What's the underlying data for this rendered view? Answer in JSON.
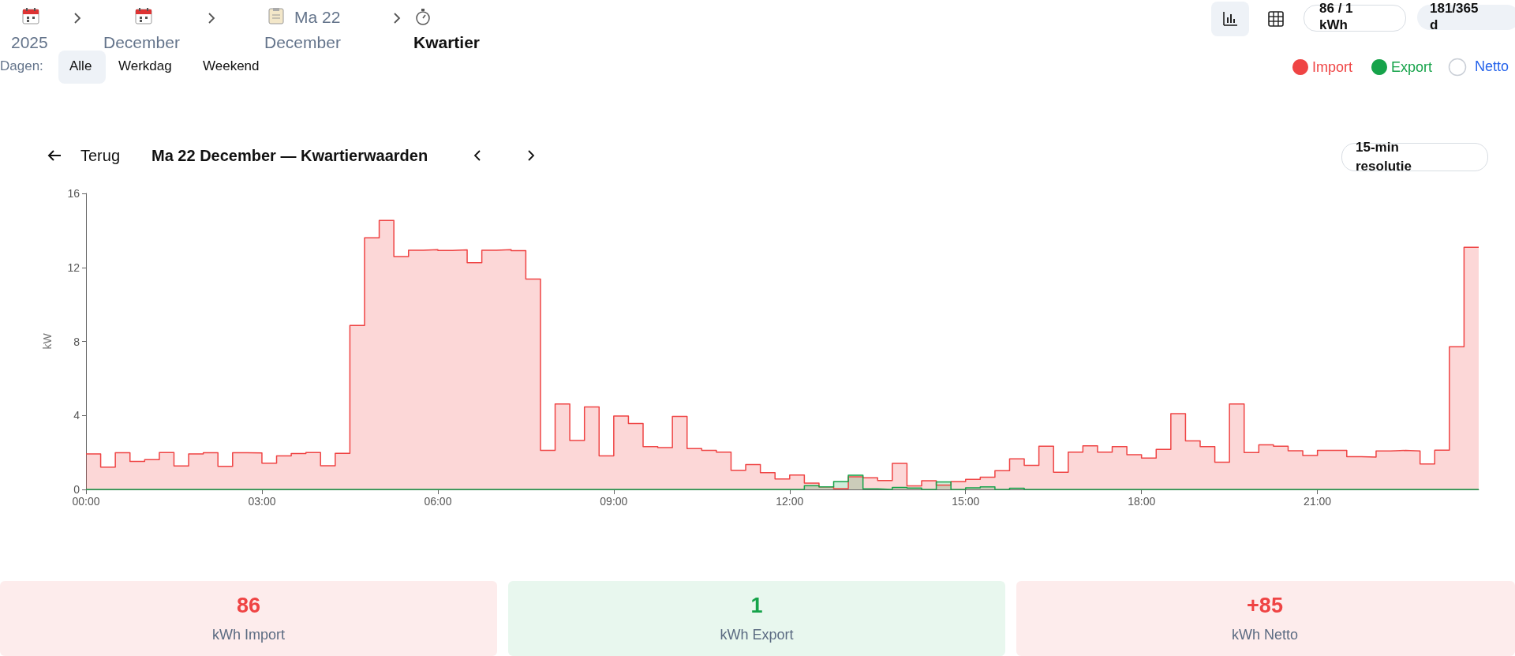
{
  "chart_data": {
    "type": "step",
    "title": "Ma 22 December — Kwartierwaarden",
    "ylabel": "kW",
    "marker": "none",
    "line_style": "solid",
    "legend": "top right",
    "x": [
      0,
      0.25,
      0.5,
      0.75,
      1,
      1.25,
      1.5,
      1.75,
      2,
      2.25,
      2.5,
      2.75,
      3,
      3.25,
      3.5,
      3.75,
      4,
      4.25,
      4.5,
      4.75,
      5,
      5.25,
      5.5,
      5.75,
      6,
      6.25,
      6.5,
      6.75,
      7,
      7.25,
      7.5,
      7.75,
      8,
      8.25,
      8.5,
      8.75,
      9,
      9.25,
      9.5,
      9.75,
      10,
      10.25,
      10.5,
      10.75,
      11,
      11.25,
      11.5,
      11.75,
      12,
      12.25,
      12.5,
      12.75,
      13,
      13.25,
      13.5,
      13.75,
      14,
      14.25,
      14.5,
      14.75,
      15,
      15.25,
      15.5,
      15.75,
      16,
      16.25,
      16.5,
      16.75,
      17,
      17.25,
      17.5,
      17.75,
      18,
      18.25,
      18.5,
      18.75,
      19,
      19.25,
      19.5,
      19.75,
      20,
      20.25,
      20.5,
      20.75,
      21,
      21.25,
      21.5,
      21.75,
      22,
      22.25,
      22.5,
      22.75,
      23,
      23.25,
      23.5,
      23.75
    ],
    "series": [
      {
        "name": "Import",
        "color": "#ef4444",
        "values": [
          1.92,
          1.21,
          1.98,
          1.51,
          1.61,
          1.99,
          1.27,
          1.92,
          1.98,
          1.25,
          1.98,
          1.97,
          1.42,
          1.81,
          1.94,
          1.99,
          1.28,
          1.95,
          8.86,
          13.6,
          14.54,
          12.59,
          12.93,
          12.96,
          12.92,
          12.95,
          12.26,
          12.93,
          12.96,
          12.91,
          11.37,
          2.11,
          4.62,
          2.65,
          4.46,
          1.81,
          3.97,
          3.56,
          2.32,
          2.26,
          3.95,
          2.21,
          2.11,
          2.02,
          1.04,
          1.34,
          0.91,
          0.57,
          0.78,
          0.34,
          0.14,
          0.04,
          0.68,
          0.63,
          0.48,
          1.41,
          0.19,
          0.47,
          0.23,
          0.43,
          0.54,
          0.66,
          1.01,
          1.65,
          1.3,
          2.34,
          0.93,
          2.02,
          2.36,
          2.02,
          2.32,
          1.88,
          1.7,
          2.17,
          4.1,
          2.62,
          2.31,
          1.47,
          4.62,
          1.99,
          2.41,
          2.34,
          2.09,
          1.84,
          2.11,
          2.11,
          1.77,
          1.75,
          2.08,
          2.11,
          2.08,
          1.38,
          2.12,
          7.71,
          13.09,
          13.09
        ]
      },
      {
        "name": "Export",
        "color": "#16a34a",
        "values": [
          0,
          0,
          0,
          0,
          0,
          0,
          0,
          0,
          0,
          0,
          0,
          0,
          0,
          0,
          0,
          0,
          0,
          0,
          0,
          0,
          0,
          0,
          0,
          0,
          0,
          0,
          0,
          0,
          0,
          0,
          0,
          0,
          0,
          0,
          0,
          0,
          0,
          0,
          0,
          0,
          0,
          0,
          0,
          0,
          0,
          0,
          0,
          0,
          0,
          0.2,
          0.14,
          0.43,
          0.77,
          0.03,
          0,
          0.11,
          0.07,
          0,
          0.41,
          0,
          0.09,
          0.14,
          0,
          0.06,
          0,
          0,
          0,
          0,
          0,
          0,
          0,
          0,
          0,
          0,
          0,
          0,
          0,
          0,
          0,
          0,
          0,
          0,
          0,
          0,
          0,
          0,
          0,
          0,
          0,
          0,
          0,
          0,
          0,
          0,
          0,
          0
        ]
      }
    ],
    "xlim": [
      0,
      23.75
    ],
    "xticks": [
      {
        "value": 0,
        "label": "00:00"
      },
      {
        "value": 3,
        "label": "03:00"
      },
      {
        "value": 6,
        "label": "06:00"
      },
      {
        "value": 9,
        "label": "09:00"
      },
      {
        "value": 12,
        "label": "12:00"
      },
      {
        "value": 15,
        "label": "15:00"
      },
      {
        "value": 18,
        "label": "18:00"
      },
      {
        "value": 21,
        "label": "21:00"
      }
    ],
    "ylim": [
      0,
      16
    ],
    "yticks": [
      0,
      4,
      8,
      12,
      16
    ],
    "annotations": [
      "2025",
      "December",
      "Ma 22",
      "December",
      "Kwartier",
      "Dagen:",
      "Alle",
      "Werkdag",
      "Weekend",
      "86 / 1 kWh",
      "181/365 d",
      "Netto",
      "Terug",
      "15-min resolutie",
      "86",
      "kWh Import",
      "1",
      "kWh Export",
      "+85",
      "kWh Netto"
    ]
  }
}
